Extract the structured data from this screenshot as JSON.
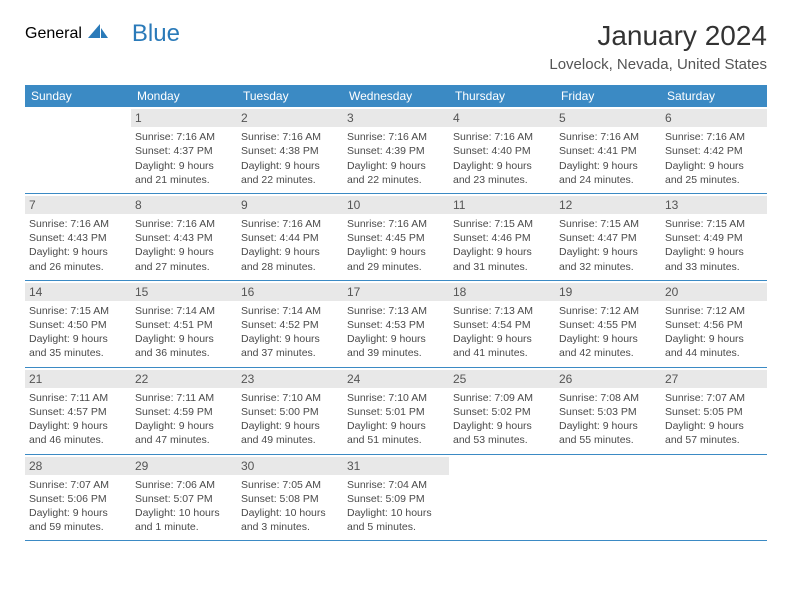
{
  "logo": {
    "text_general": "General",
    "text_blue": "Blue",
    "icon_color": "#2a7ab9"
  },
  "title": "January 2024",
  "location": "Lovelock, Nevada, United States",
  "header_bg": "#3b8ac4",
  "daynum_bg": "#e8e8e8",
  "weekdays": [
    "Sunday",
    "Monday",
    "Tuesday",
    "Wednesday",
    "Thursday",
    "Friday",
    "Saturday"
  ],
  "weeks": [
    [
      null,
      {
        "n": "1",
        "sr": "Sunrise: 7:16 AM",
        "ss": "Sunset: 4:37 PM",
        "d1": "Daylight: 9 hours",
        "d2": "and 21 minutes."
      },
      {
        "n": "2",
        "sr": "Sunrise: 7:16 AM",
        "ss": "Sunset: 4:38 PM",
        "d1": "Daylight: 9 hours",
        "d2": "and 22 minutes."
      },
      {
        "n": "3",
        "sr": "Sunrise: 7:16 AM",
        "ss": "Sunset: 4:39 PM",
        "d1": "Daylight: 9 hours",
        "d2": "and 22 minutes."
      },
      {
        "n": "4",
        "sr": "Sunrise: 7:16 AM",
        "ss": "Sunset: 4:40 PM",
        "d1": "Daylight: 9 hours",
        "d2": "and 23 minutes."
      },
      {
        "n": "5",
        "sr": "Sunrise: 7:16 AM",
        "ss": "Sunset: 4:41 PM",
        "d1": "Daylight: 9 hours",
        "d2": "and 24 minutes."
      },
      {
        "n": "6",
        "sr": "Sunrise: 7:16 AM",
        "ss": "Sunset: 4:42 PM",
        "d1": "Daylight: 9 hours",
        "d2": "and 25 minutes."
      }
    ],
    [
      {
        "n": "7",
        "sr": "Sunrise: 7:16 AM",
        "ss": "Sunset: 4:43 PM",
        "d1": "Daylight: 9 hours",
        "d2": "and 26 minutes."
      },
      {
        "n": "8",
        "sr": "Sunrise: 7:16 AM",
        "ss": "Sunset: 4:43 PM",
        "d1": "Daylight: 9 hours",
        "d2": "and 27 minutes."
      },
      {
        "n": "9",
        "sr": "Sunrise: 7:16 AM",
        "ss": "Sunset: 4:44 PM",
        "d1": "Daylight: 9 hours",
        "d2": "and 28 minutes."
      },
      {
        "n": "10",
        "sr": "Sunrise: 7:16 AM",
        "ss": "Sunset: 4:45 PM",
        "d1": "Daylight: 9 hours",
        "d2": "and 29 minutes."
      },
      {
        "n": "11",
        "sr": "Sunrise: 7:15 AM",
        "ss": "Sunset: 4:46 PM",
        "d1": "Daylight: 9 hours",
        "d2": "and 31 minutes."
      },
      {
        "n": "12",
        "sr": "Sunrise: 7:15 AM",
        "ss": "Sunset: 4:47 PM",
        "d1": "Daylight: 9 hours",
        "d2": "and 32 minutes."
      },
      {
        "n": "13",
        "sr": "Sunrise: 7:15 AM",
        "ss": "Sunset: 4:49 PM",
        "d1": "Daylight: 9 hours",
        "d2": "and 33 minutes."
      }
    ],
    [
      {
        "n": "14",
        "sr": "Sunrise: 7:15 AM",
        "ss": "Sunset: 4:50 PM",
        "d1": "Daylight: 9 hours",
        "d2": "and 35 minutes."
      },
      {
        "n": "15",
        "sr": "Sunrise: 7:14 AM",
        "ss": "Sunset: 4:51 PM",
        "d1": "Daylight: 9 hours",
        "d2": "and 36 minutes."
      },
      {
        "n": "16",
        "sr": "Sunrise: 7:14 AM",
        "ss": "Sunset: 4:52 PM",
        "d1": "Daylight: 9 hours",
        "d2": "and 37 minutes."
      },
      {
        "n": "17",
        "sr": "Sunrise: 7:13 AM",
        "ss": "Sunset: 4:53 PM",
        "d1": "Daylight: 9 hours",
        "d2": "and 39 minutes."
      },
      {
        "n": "18",
        "sr": "Sunrise: 7:13 AM",
        "ss": "Sunset: 4:54 PM",
        "d1": "Daylight: 9 hours",
        "d2": "and 41 minutes."
      },
      {
        "n": "19",
        "sr": "Sunrise: 7:12 AM",
        "ss": "Sunset: 4:55 PM",
        "d1": "Daylight: 9 hours",
        "d2": "and 42 minutes."
      },
      {
        "n": "20",
        "sr": "Sunrise: 7:12 AM",
        "ss": "Sunset: 4:56 PM",
        "d1": "Daylight: 9 hours",
        "d2": "and 44 minutes."
      }
    ],
    [
      {
        "n": "21",
        "sr": "Sunrise: 7:11 AM",
        "ss": "Sunset: 4:57 PM",
        "d1": "Daylight: 9 hours",
        "d2": "and 46 minutes."
      },
      {
        "n": "22",
        "sr": "Sunrise: 7:11 AM",
        "ss": "Sunset: 4:59 PM",
        "d1": "Daylight: 9 hours",
        "d2": "and 47 minutes."
      },
      {
        "n": "23",
        "sr": "Sunrise: 7:10 AM",
        "ss": "Sunset: 5:00 PM",
        "d1": "Daylight: 9 hours",
        "d2": "and 49 minutes."
      },
      {
        "n": "24",
        "sr": "Sunrise: 7:10 AM",
        "ss": "Sunset: 5:01 PM",
        "d1": "Daylight: 9 hours",
        "d2": "and 51 minutes."
      },
      {
        "n": "25",
        "sr": "Sunrise: 7:09 AM",
        "ss": "Sunset: 5:02 PM",
        "d1": "Daylight: 9 hours",
        "d2": "and 53 minutes."
      },
      {
        "n": "26",
        "sr": "Sunrise: 7:08 AM",
        "ss": "Sunset: 5:03 PM",
        "d1": "Daylight: 9 hours",
        "d2": "and 55 minutes."
      },
      {
        "n": "27",
        "sr": "Sunrise: 7:07 AM",
        "ss": "Sunset: 5:05 PM",
        "d1": "Daylight: 9 hours",
        "d2": "and 57 minutes."
      }
    ],
    [
      {
        "n": "28",
        "sr": "Sunrise: 7:07 AM",
        "ss": "Sunset: 5:06 PM",
        "d1": "Daylight: 9 hours",
        "d2": "and 59 minutes."
      },
      {
        "n": "29",
        "sr": "Sunrise: 7:06 AM",
        "ss": "Sunset: 5:07 PM",
        "d1": "Daylight: 10 hours",
        "d2": "and 1 minute."
      },
      {
        "n": "30",
        "sr": "Sunrise: 7:05 AM",
        "ss": "Sunset: 5:08 PM",
        "d1": "Daylight: 10 hours",
        "d2": "and 3 minutes."
      },
      {
        "n": "31",
        "sr": "Sunrise: 7:04 AM",
        "ss": "Sunset: 5:09 PM",
        "d1": "Daylight: 10 hours",
        "d2": "and 5 minutes."
      },
      null,
      null,
      null
    ]
  ]
}
